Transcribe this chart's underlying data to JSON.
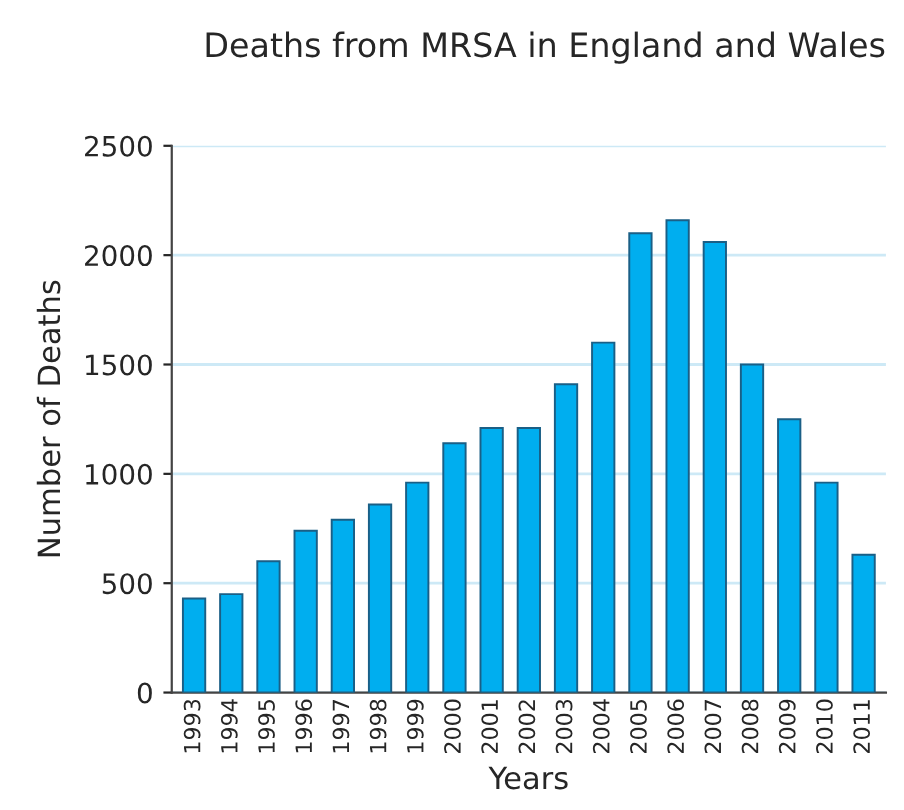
{
  "chart_data": {
    "type": "bar",
    "title": "Deaths from MRSA in England and Wales",
    "xlabel": "Years",
    "ylabel": "Number of Deaths",
    "categories": [
      "1993",
      "1994",
      "1995",
      "1996",
      "1997",
      "1998",
      "1999",
      "2000",
      "2001",
      "2002",
      "2003",
      "2004",
      "2005",
      "2006",
      "2007",
      "2008",
      "2009",
      "2010",
      "2011"
    ],
    "series": [
      {
        "color": "#00aeef",
        "values": [
          430,
          450,
          600,
          740,
          790,
          860,
          960,
          1140,
          1210,
          1210,
          1410,
          1600,
          2100,
          2160,
          2060,
          1500,
          1250,
          960,
          630
        ]
      }
    ],
    "ylim": [
      0,
      2500
    ],
    "yticks": [
      0,
      500,
      1000,
      1500,
      2000,
      2500
    ],
    "grid": "y",
    "legend": false
  }
}
